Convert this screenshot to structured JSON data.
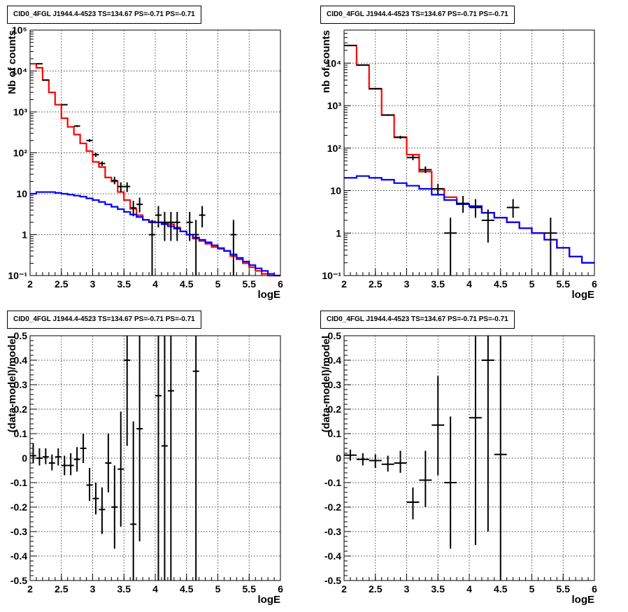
{
  "chart_data": [
    {
      "type": "line",
      "title": "CID0_4FGL J1944.4-4523 TS=134.67 PS=-0.71 PS=-0.71",
      "xlabel": "logE",
      "ylabel": "Nb of counts",
      "xlim": [
        2,
        6
      ],
      "ylim": [
        0.1,
        100000
      ],
      "yscale": "log",
      "grid": true,
      "x_ticks": [
        "2",
        "2.5",
        "3",
        "3.5",
        "4",
        "4.5",
        "5",
        "5.5",
        "6"
      ],
      "y_ticks": [
        "10⁻¹",
        "1",
        "10",
        "10²",
        "10³",
        "10⁴",
        "10⁵"
      ],
      "bin_edges": [
        2.0,
        2.1,
        2.2,
        2.3,
        2.4,
        2.5,
        2.6,
        2.7,
        2.8,
        2.9,
        3.0,
        3.1,
        3.2,
        3.3,
        3.4,
        3.5,
        3.6,
        3.7,
        3.8,
        3.9,
        4.0,
        4.1,
        4.2,
        4.3,
        4.4,
        4.5,
        4.6,
        4.7,
        4.8,
        4.9,
        5.0,
        5.1,
        5.2,
        5.3,
        5.4,
        5.5,
        5.6,
        5.7,
        5.8,
        5.9,
        6.0
      ],
      "series": [
        {
          "name": "",
          "color": "#ff0000",
          "style": "step",
          "values": [
            15000,
            12000,
            6000,
            3000,
            1500,
            700,
            430,
            280,
            170,
            110,
            60,
            45,
            25,
            20,
            11,
            7,
            4.3,
            3.0,
            2.3,
            2.1,
            2.0,
            1.9,
            1.8,
            1.5,
            1.2,
            1.0,
            0.8,
            0.7,
            0.6,
            0.5,
            0.45,
            0.4,
            0.3,
            0.25,
            0.2,
            0.16,
            0.13,
            0.11,
            0.1,
            0.1
          ]
        },
        {
          "name": "",
          "color": "#0000ff",
          "style": "step",
          "values": [
            10,
            11,
            11,
            11,
            10.5,
            10,
            9.5,
            9,
            8.5,
            7.7,
            7,
            6.3,
            5.5,
            4.8,
            4.2,
            3.6,
            3.1,
            2.7,
            2.3,
            2.0,
            2.0,
            1.8,
            1.6,
            1.4,
            1.2,
            1.0,
            0.85,
            0.75,
            0.65,
            0.55,
            0.47,
            0.4,
            0.33,
            0.27,
            0.22,
            0.18,
            0.15,
            0.13,
            0.11,
            0.1
          ]
        },
        {
          "name": "",
          "color": "#000000",
          "style": "errorbar",
          "points": [
            {
              "x": 2.15,
              "y": 15000,
              "lo": 14700,
              "hi": 15300
            },
            {
              "x": 2.25,
              "y": 6000,
              "lo": 5850,
              "hi": 6150
            },
            {
              "x": 2.55,
              "y": 1500,
              "lo": 1460,
              "hi": 1540
            },
            {
              "x": 2.75,
              "y": 450,
              "lo": 430,
              "hi": 470
            },
            {
              "x": 2.95,
              "y": 200,
              "lo": 185,
              "hi": 215
            },
            {
              "x": 3.05,
              "y": 90,
              "lo": 80,
              "hi": 100
            },
            {
              "x": 3.15,
              "y": 55,
              "lo": 48,
              "hi": 62
            },
            {
              "x": 3.35,
              "y": 21,
              "lo": 17,
              "hi": 26
            },
            {
              "x": 3.45,
              "y": 15,
              "lo": 11,
              "hi": 19
            },
            {
              "x": 3.55,
              "y": 15,
              "lo": 11,
              "hi": 19
            },
            {
              "x": 3.65,
              "y": 4.5,
              "lo": 2.8,
              "hi": 6.7
            },
            {
              "x": 3.75,
              "y": 5.5,
              "lo": 3.5,
              "hi": 8
            },
            {
              "x": 3.95,
              "y": 1,
              "lo": 0.1,
              "hi": 2.3
            },
            {
              "x": 4.05,
              "y": 3,
              "lo": 1.5,
              "hi": 5
            },
            {
              "x": 4.15,
              "y": 2,
              "lo": 0.7,
              "hi": 3.6
            },
            {
              "x": 4.25,
              "y": 2,
              "lo": 0.7,
              "hi": 3.6
            },
            {
              "x": 4.35,
              "y": 2,
              "lo": 0.7,
              "hi": 3.6
            },
            {
              "x": 4.55,
              "y": 2,
              "lo": 0.7,
              "hi": 3.6
            },
            {
              "x": 4.65,
              "y": 1,
              "lo": 0.1,
              "hi": 2.3
            },
            {
              "x": 4.75,
              "y": 3,
              "lo": 1.5,
              "hi": 5
            },
            {
              "x": 5.25,
              "y": 1,
              "lo": 0.1,
              "hi": 2.3
            }
          ]
        }
      ]
    },
    {
      "type": "line",
      "title": "CID0_4FGL J1944.4-4523 TS=134.67 PS=-0.71 PS=-0.71",
      "xlabel": "logE",
      "ylabel": "nb of counts",
      "xlim": [
        2,
        6
      ],
      "ylim": [
        0.1,
        60000
      ],
      "yscale": "log",
      "grid": true,
      "x_ticks": [
        "2",
        "2.5",
        "3",
        "3.5",
        "4",
        "4.5",
        "5",
        "5.5",
        "6"
      ],
      "y_ticks": [
        "10⁻¹",
        "1",
        "10",
        "10²",
        "10³",
        "10⁴"
      ],
      "bin_edges": [
        2.0,
        2.2,
        2.4,
        2.6,
        2.8,
        3.0,
        3.2,
        3.4,
        3.6,
        3.8,
        4.0,
        4.2,
        4.4,
        4.6,
        4.8,
        5.0,
        5.2,
        5.4,
        5.6,
        5.8,
        6.0
      ],
      "series": [
        {
          "name": "",
          "color": "#ff0000",
          "style": "step",
          "values": [
            26000,
            9000,
            2500,
            600,
            180,
            70,
            28,
            11,
            7,
            4.8,
            4.3,
            3.0,
            2.3,
            1.8,
            1.3,
            1.0,
            0.7,
            0.45,
            0.28,
            0.2
          ]
        },
        {
          "name": "",
          "color": "#0000ff",
          "style": "step",
          "values": [
            20,
            22,
            20,
            18,
            15,
            13,
            11,
            8,
            6,
            4.8,
            4.3,
            3.0,
            2.3,
            1.8,
            1.3,
            1.0,
            0.7,
            0.45,
            0.28,
            0.2
          ]
        },
        {
          "name": "",
          "color": "#000000",
          "style": "errorbar",
          "points": [
            {
              "x": 2.1,
              "y": 26000,
              "lo": 25700,
              "hi": 26300
            },
            {
              "x": 2.3,
              "y": 9000,
              "lo": 8800,
              "hi": 9200
            },
            {
              "x": 2.5,
              "y": 2500,
              "lo": 2400,
              "hi": 2600
            },
            {
              "x": 2.7,
              "y": 600,
              "lo": 575,
              "hi": 625
            },
            {
              "x": 2.9,
              "y": 180,
              "lo": 165,
              "hi": 195
            },
            {
              "x": 3.1,
              "y": 60,
              "lo": 52,
              "hi": 68
            },
            {
              "x": 3.3,
              "y": 31,
              "lo": 26,
              "hi": 37
            },
            {
              "x": 3.5,
              "y": 11,
              "lo": 8,
              "hi": 14.5
            },
            {
              "x": 3.7,
              "y": 1,
              "lo": 0.1,
              "hi": 2.3
            },
            {
              "x": 3.9,
              "y": 5,
              "lo": 3,
              "hi": 7.5
            },
            {
              "x": 4.1,
              "y": 4,
              "lo": 2.3,
              "hi": 6.3
            },
            {
              "x": 4.3,
              "y": 2,
              "lo": 0.6,
              "hi": 3.6
            },
            {
              "x": 4.7,
              "y": 4,
              "lo": 2.3,
              "hi": 6.3
            },
            {
              "x": 5.3,
              "y": 1,
              "lo": 0.1,
              "hi": 2.3
            }
          ]
        }
      ]
    },
    {
      "type": "scatter",
      "title": "CID0_4FGL J1944.4-4523 TS=134.67 PS=-0.71 PS=-0.71",
      "xlabel": "logE",
      "ylabel": "(data-model)/model",
      "xlim": [
        2,
        6
      ],
      "ylim": [
        -0.5,
        0.5
      ],
      "grid": true,
      "x_ticks": [
        "2",
        "2.5",
        "3",
        "3.5",
        "4",
        "4.5",
        "5",
        "5.5",
        "6"
      ],
      "y_ticks": [
        "-0.5",
        "-0.4",
        "-0.3",
        "-0.2",
        "-0.1",
        "0",
        "0.1",
        "0.2",
        "0.3",
        "0.4",
        "0.5"
      ],
      "xerr": 0.05,
      "series": [
        {
          "name": "",
          "color": "#000000",
          "style": "errorbar",
          "points": [
            {
              "x": 2.05,
              "y": 0.01,
              "lo": -0.02,
              "hi": 0.06
            },
            {
              "x": 2.15,
              "y": 0.0,
              "lo": -0.03,
              "hi": 0.04
            },
            {
              "x": 2.25,
              "y": 0.005,
              "lo": -0.025,
              "hi": 0.04
            },
            {
              "x": 2.35,
              "y": -0.02,
              "lo": -0.05,
              "hi": 0.015
            },
            {
              "x": 2.45,
              "y": 0.005,
              "lo": -0.03,
              "hi": 0.04
            },
            {
              "x": 2.55,
              "y": -0.03,
              "lo": -0.07,
              "hi": 0.01
            },
            {
              "x": 2.65,
              "y": -0.03,
              "lo": -0.07,
              "hi": 0.02
            },
            {
              "x": 2.75,
              "y": -0.005,
              "lo": -0.055,
              "hi": 0.045
            },
            {
              "x": 2.85,
              "y": 0.04,
              "lo": -0.02,
              "hi": 0.1
            },
            {
              "x": 2.95,
              "y": -0.11,
              "lo": -0.175,
              "hi": -0.04
            },
            {
              "x": 3.05,
              "y": -0.165,
              "lo": -0.23,
              "hi": -0.1
            },
            {
              "x": 3.15,
              "y": -0.21,
              "lo": -0.31,
              "hi": -0.12
            },
            {
              "x": 3.25,
              "y": -0.02,
              "lo": -0.14,
              "hi": 0.1
            },
            {
              "x": 3.35,
              "y": -0.2,
              "lo": -0.37,
              "hi": -0.03
            },
            {
              "x": 3.45,
              "y": -0.045,
              "lo": -0.28,
              "hi": 0.19
            },
            {
              "x": 3.55,
              "y": 0.4,
              "lo": 0.05,
              "hi": 0.5
            },
            {
              "x": 3.65,
              "y": -0.27,
              "lo": -0.5,
              "hi": 0.15
            },
            {
              "x": 3.75,
              "y": 0.12,
              "lo": -0.34,
              "hi": 0.5
            },
            {
              "x": 4.05,
              "y": 0.255,
              "lo": -0.5,
              "hi": 0.5
            },
            {
              "x": 4.15,
              "y": 0.05,
              "lo": -0.5,
              "hi": 0.5
            },
            {
              "x": 4.25,
              "y": 0.275,
              "lo": -0.5,
              "hi": 0.5
            },
            {
              "x": 4.65,
              "y": 0.355,
              "lo": -0.5,
              "hi": 0.5
            }
          ]
        }
      ]
    },
    {
      "type": "scatter",
      "title": "CID0_4FGL J1944.4-4523 TS=134.67 PS=-0.71 PS=-0.71",
      "xlabel": "logE",
      "ylabel": "(data-model)/model",
      "xlim": [
        2,
        6
      ],
      "ylim": [
        -0.5,
        0.5
      ],
      "grid": true,
      "x_ticks": [
        "2",
        "2.5",
        "3",
        "3.5",
        "4",
        "4.5",
        "5",
        "5.5",
        "6"
      ],
      "y_ticks": [
        "-0.5",
        "-0.4",
        "-0.3",
        "-0.2",
        "-0.1",
        "0",
        "0.1",
        "0.2",
        "0.3",
        "0.4",
        "0.5"
      ],
      "xerr": 0.1,
      "series": [
        {
          "name": "",
          "color": "#000000",
          "style": "errorbar",
          "points": [
            {
              "x": 2.1,
              "y": 0.012,
              "lo": -0.01,
              "hi": 0.035
            },
            {
              "x": 2.3,
              "y": -0.005,
              "lo": -0.03,
              "hi": 0.02
            },
            {
              "x": 2.5,
              "y": -0.01,
              "lo": -0.04,
              "hi": 0.015
            },
            {
              "x": 2.7,
              "y": -0.025,
              "lo": -0.055,
              "hi": 0.01
            },
            {
              "x": 2.9,
              "y": -0.02,
              "lo": -0.06,
              "hi": 0.03
            },
            {
              "x": 3.1,
              "y": -0.18,
              "lo": -0.25,
              "hi": -0.12
            },
            {
              "x": 3.3,
              "y": -0.09,
              "lo": -0.2,
              "hi": 0.03
            },
            {
              "x": 3.5,
              "y": 0.135,
              "lo": -0.07,
              "hi": 0.335
            },
            {
              "x": 3.7,
              "y": -0.1,
              "lo": -0.37,
              "hi": 0.17
            },
            {
              "x": 4.1,
              "y": 0.165,
              "lo": -0.355,
              "hi": 0.5
            },
            {
              "x": 4.3,
              "y": 0.4,
              "lo": -0.3,
              "hi": 0.5
            },
            {
              "x": 4.5,
              "y": 0.015,
              "lo": -0.5,
              "hi": 0.5
            }
          ]
        }
      ]
    }
  ]
}
